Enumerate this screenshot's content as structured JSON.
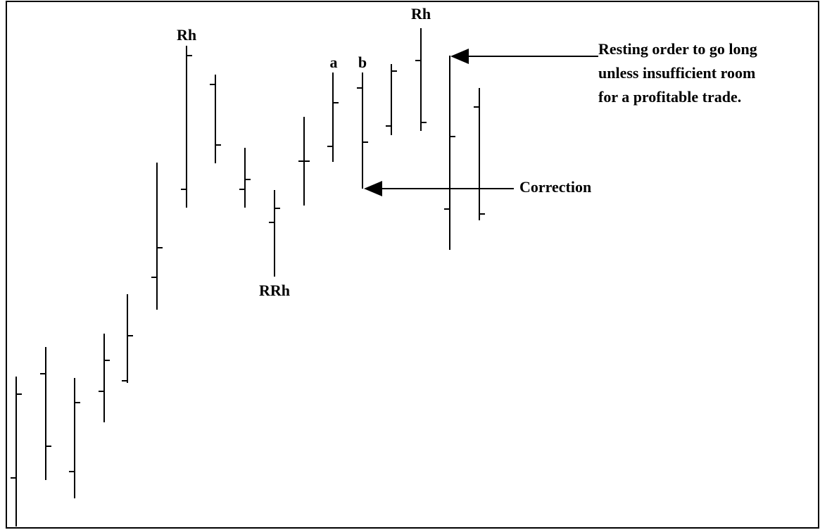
{
  "labels": {
    "rh_left": "Rh",
    "rh_right": "Rh",
    "a": "a",
    "b": "b",
    "rrh": "RRh",
    "correction": "Correction"
  },
  "resting_order": [
    "Resting order to go long",
    "unless insufficient room",
    "for a profitable trade."
  ]
}
